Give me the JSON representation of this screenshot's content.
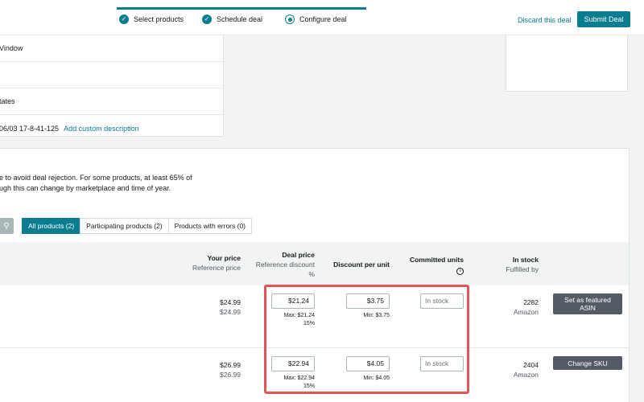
{
  "header": {
    "steps": [
      {
        "label": "Select products",
        "state": "done"
      },
      {
        "label": "Schedule deal",
        "state": "done"
      },
      {
        "label": "Configure deal",
        "state": "current"
      }
    ],
    "discard_label": "Discard this deal",
    "submit_label": "Submit Deal"
  },
  "summary": {
    "rows": [
      "Vindow",
      "",
      "tates",
      "06/03 17-8-41-125"
    ],
    "add_description_label": "Add custom description"
  },
  "guidance": {
    "line1": "e to avoid deal rejection. For some products, at least 65% of",
    "line2": "ugh this can change by marketplace and time of year."
  },
  "tabs": [
    {
      "label": "All products (2)",
      "active": true
    },
    {
      "label": "Participating products (2)",
      "active": false
    },
    {
      "label": "Products with errors (0)",
      "active": false
    }
  ],
  "columns": {
    "your_price": {
      "title": "Your price",
      "sub": "Reference price"
    },
    "deal_price": {
      "title": "Deal price",
      "sub1": "Reference discount",
      "sub2": "%"
    },
    "discount": {
      "title": "Discount per unit"
    },
    "committed": {
      "title": "Committed units"
    },
    "stock": {
      "title": "In stock",
      "sub": "Fulfilled by"
    }
  },
  "products": [
    {
      "your_price": "$24.99",
      "reference_price": "$24.99",
      "deal_price": "$21.24",
      "max_hint": "Max: $21.24",
      "discount_pct": "15%",
      "discount_per_unit": "$3.75",
      "min_hint": "Min: $3.75",
      "committed_placeholder": "In stock",
      "in_stock": "2282",
      "fulfilled_by": "Amazon",
      "action_label": "Set as featured ASIN"
    },
    {
      "your_price": "$26.99",
      "reference_price": "$26.99",
      "deal_price": "$22.94",
      "max_hint": "Max: $22.94",
      "discount_pct": "15%",
      "discount_per_unit": "$4.05",
      "min_hint": "Min: $4.05",
      "committed_placeholder": "In stock",
      "in_stock": "2404",
      "fulfilled_by": "Amazon",
      "action_label": "Change SKU"
    }
  ],
  "colors": {
    "accent": "#0b7d91",
    "highlight": "#e05656",
    "action_button": "#545b64"
  }
}
